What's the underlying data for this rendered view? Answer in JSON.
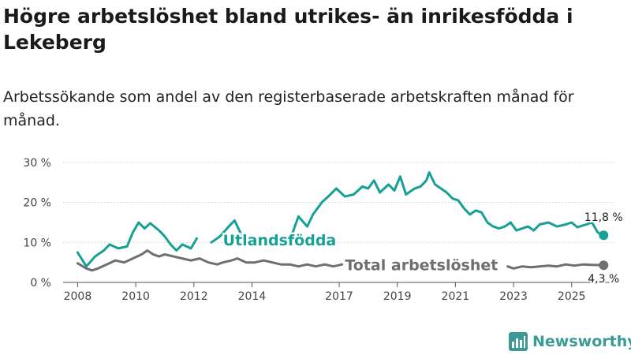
{
  "title": "Högre arbetslöshet bland utrikes- än inrikesfödda i Lekeberg",
  "subtitle": "Arbetssökande som andel av den registerbaserade arbetskraften månad för månad.",
  "brand": "Newsworthy",
  "colors": {
    "foreign": "#17a094",
    "total": "#6e6e73",
    "grid": "#d9d9d9",
    "axis": "#555555"
  },
  "chart_data": {
    "type": "line",
    "title": "Högre arbetslöshet bland utrikes- än inrikesfödda i Lekeberg",
    "ylabel": "",
    "xlabel": "",
    "ylim": [
      0,
      30
    ],
    "xlim": [
      2007.5,
      2026.5
    ],
    "y_ticks": [
      0,
      10,
      20,
      30
    ],
    "y_tick_labels": [
      "0 %",
      "10 %",
      "20 %",
      "30 %"
    ],
    "x_ticks": [
      2008,
      2010,
      2012,
      2014,
      2017,
      2019,
      2021,
      2023,
      2025
    ],
    "x_tick_labels": [
      "2008",
      "2010",
      "2012",
      "2014",
      "2017",
      "2019",
      "2021",
      "2023",
      "2025"
    ],
    "series": [
      {
        "name": "Utlandsfödda",
        "end_label": "11,8 %",
        "points": [
          [
            2008.0,
            7.5
          ],
          [
            2008.3,
            4.0
          ],
          [
            2008.6,
            6.5
          ],
          [
            2008.9,
            8.0
          ],
          [
            2009.1,
            9.5
          ],
          [
            2009.4,
            8.5
          ],
          [
            2009.7,
            9.0
          ],
          [
            2009.9,
            12.5
          ],
          [
            2010.1,
            15.0
          ],
          [
            2010.3,
            13.5
          ],
          [
            2010.5,
            14.8
          ],
          [
            2010.8,
            13.0
          ],
          [
            2011.0,
            11.5
          ],
          [
            2011.2,
            9.5
          ],
          [
            2011.4,
            8.0
          ],
          [
            2011.6,
            9.5
          ],
          [
            2011.9,
            8.5
          ],
          [
            2012.1,
            11.0
          ],
          [
            2012.3,
            null
          ],
          [
            2012.6,
            10.0
          ],
          [
            2012.9,
            11.5
          ],
          [
            2013.2,
            14.0
          ],
          [
            2013.4,
            15.5
          ],
          [
            2013.6,
            12.5
          ],
          [
            2013.8,
            10.5
          ],
          [
            2014.0,
            11.0
          ],
          [
            2014.2,
            null
          ],
          [
            2014.8,
            11.5
          ],
          [
            2015.1,
            10.5
          ],
          [
            2015.4,
            12.5
          ],
          [
            2015.6,
            16.5
          ],
          [
            2015.9,
            14.0
          ],
          [
            2016.1,
            17.0
          ],
          [
            2016.4,
            20.0
          ],
          [
            2016.7,
            22.0
          ],
          [
            2016.9,
            23.5
          ],
          [
            2017.2,
            21.5
          ],
          [
            2017.5,
            22.0
          ],
          [
            2017.8,
            24.0
          ],
          [
            2018.0,
            23.5
          ],
          [
            2018.2,
            25.5
          ],
          [
            2018.4,
            22.5
          ],
          [
            2018.7,
            24.5
          ],
          [
            2018.9,
            23.0
          ],
          [
            2019.1,
            26.5
          ],
          [
            2019.3,
            22.0
          ],
          [
            2019.6,
            23.5
          ],
          [
            2019.8,
            24.0
          ],
          [
            2020.0,
            25.5
          ],
          [
            2020.1,
            27.5
          ],
          [
            2020.3,
            24.5
          ],
          [
            2020.5,
            23.5
          ],
          [
            2020.7,
            22.5
          ],
          [
            2020.9,
            21.0
          ],
          [
            2021.1,
            20.5
          ],
          [
            2021.3,
            18.5
          ],
          [
            2021.5,
            17.0
          ],
          [
            2021.7,
            18.0
          ],
          [
            2021.9,
            17.5
          ],
          [
            2022.1,
            15.0
          ],
          [
            2022.3,
            14.0
          ],
          [
            2022.5,
            13.5
          ],
          [
            2022.7,
            14.0
          ],
          [
            2022.9,
            15.0
          ],
          [
            2023.1,
            13.0
          ],
          [
            2023.3,
            13.5
          ],
          [
            2023.5,
            14.0
          ],
          [
            2023.7,
            13.0
          ],
          [
            2023.9,
            14.5
          ],
          [
            2024.2,
            15.0
          ],
          [
            2024.5,
            14.0
          ],
          [
            2024.8,
            14.5
          ],
          [
            2025.0,
            15.0
          ],
          [
            2025.2,
            13.8
          ],
          [
            2025.5,
            14.5
          ],
          [
            2025.7,
            15.0
          ],
          [
            2025.9,
            12.5
          ],
          [
            2026.1,
            11.8
          ]
        ]
      },
      {
        "name": "Total arbetslöshet",
        "end_label": "4,3 %",
        "points": [
          [
            2008.0,
            4.8
          ],
          [
            2008.3,
            3.5
          ],
          [
            2008.5,
            3.0
          ],
          [
            2008.7,
            3.5
          ],
          [
            2009.0,
            4.5
          ],
          [
            2009.3,
            5.5
          ],
          [
            2009.6,
            5.0
          ],
          [
            2009.9,
            6.0
          ],
          [
            2010.2,
            7.0
          ],
          [
            2010.4,
            8.0
          ],
          [
            2010.6,
            7.0
          ],
          [
            2010.8,
            6.5
          ],
          [
            2011.0,
            7.0
          ],
          [
            2011.3,
            6.5
          ],
          [
            2011.6,
            6.0
          ],
          [
            2011.9,
            5.5
          ],
          [
            2012.2,
            6.0
          ],
          [
            2012.5,
            5.0
          ],
          [
            2012.8,
            4.5
          ],
          [
            2013.0,
            5.0
          ],
          [
            2013.3,
            5.5
          ],
          [
            2013.5,
            6.0
          ],
          [
            2013.8,
            5.0
          ],
          [
            2014.1,
            5.0
          ],
          [
            2014.4,
            5.5
          ],
          [
            2014.7,
            5.0
          ],
          [
            2015.0,
            4.5
          ],
          [
            2015.3,
            4.5
          ],
          [
            2015.6,
            4.0
          ],
          [
            2015.9,
            4.5
          ],
          [
            2016.2,
            4.0
          ],
          [
            2016.5,
            4.5
          ],
          [
            2016.8,
            4.0
          ],
          [
            2017.1,
            4.5
          ],
          [
            2017.3,
            null
          ],
          [
            2022.8,
            4.0
          ],
          [
            2023.0,
            3.5
          ],
          [
            2023.3,
            4.0
          ],
          [
            2023.6,
            3.8
          ],
          [
            2023.9,
            4.0
          ],
          [
            2024.2,
            4.2
          ],
          [
            2024.5,
            4.0
          ],
          [
            2024.8,
            4.5
          ],
          [
            2025.1,
            4.2
          ],
          [
            2025.4,
            4.5
          ],
          [
            2025.7,
            4.4
          ],
          [
            2026.1,
            4.3
          ]
        ]
      }
    ],
    "annotations": [
      {
        "text": "Utlandsfödda",
        "series": "Utlandsfödda",
        "x": 2013.0,
        "y": 10.5
      },
      {
        "text": "Total arbetslöshet",
        "series": "Total arbetslöshet",
        "x": 2017.2,
        "y": 4.2
      }
    ]
  }
}
